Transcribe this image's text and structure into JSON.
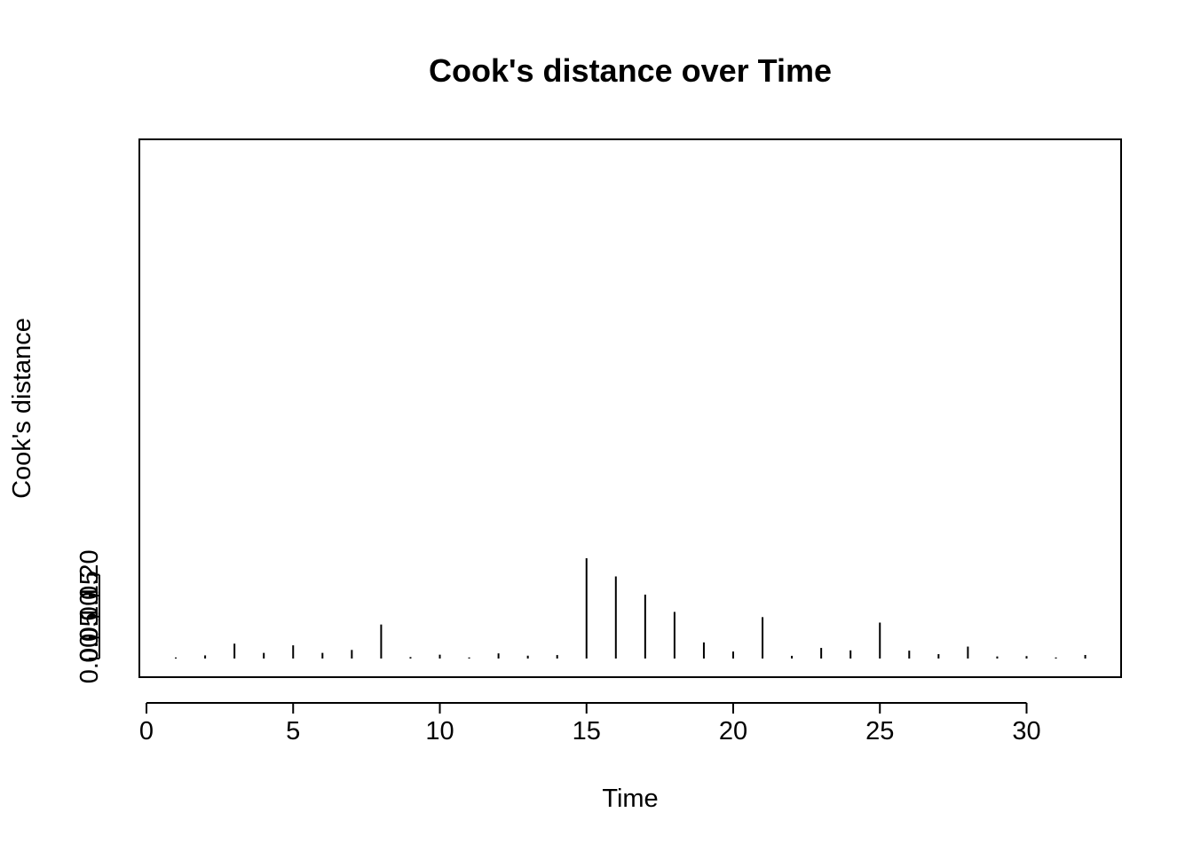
{
  "chart_data": {
    "type": "bar",
    "style": "vertical-spikes",
    "title": "Cook's distance over Time",
    "xlabel": "Time",
    "ylabel": "Cook's distance",
    "xlim": [
      0,
      33
    ],
    "ylim": [
      0,
      0.24
    ],
    "x_ticks": [
      0,
      5,
      10,
      15,
      20,
      25,
      30
    ],
    "x_tick_labels": [
      "0",
      "5",
      "10",
      "15",
      "20",
      "25",
      "30"
    ],
    "y_ticks": [
      0.0,
      0.05,
      0.1,
      0.15,
      0.2
    ],
    "y_tick_labels": [
      "0.00",
      "0.05",
      "0.10",
      "0.15",
      "0.20"
    ],
    "grid": false,
    "x": [
      1,
      2,
      3,
      4,
      5,
      6,
      7,
      8,
      9,
      10,
      11,
      12,
      13,
      14,
      15,
      16,
      17,
      18,
      19,
      20,
      21,
      22,
      23,
      24,
      25,
      26,
      27,
      28,
      29,
      30,
      31,
      32
    ],
    "values": [
      0.0005,
      0.0075,
      0.0355,
      0.0135,
      0.0315,
      0.0135,
      0.0205,
      0.0812,
      0.0035,
      0.0092,
      0.0018,
      0.0123,
      0.0068,
      0.0083,
      0.2393,
      0.196,
      0.1525,
      0.1113,
      0.0385,
      0.0167,
      0.0988,
      0.0065,
      0.0253,
      0.0195,
      0.0858,
      0.0188,
      0.0105,
      0.0285,
      0.005,
      0.0058,
      0.0005,
      0.0085
    ],
    "color": "#000000"
  }
}
